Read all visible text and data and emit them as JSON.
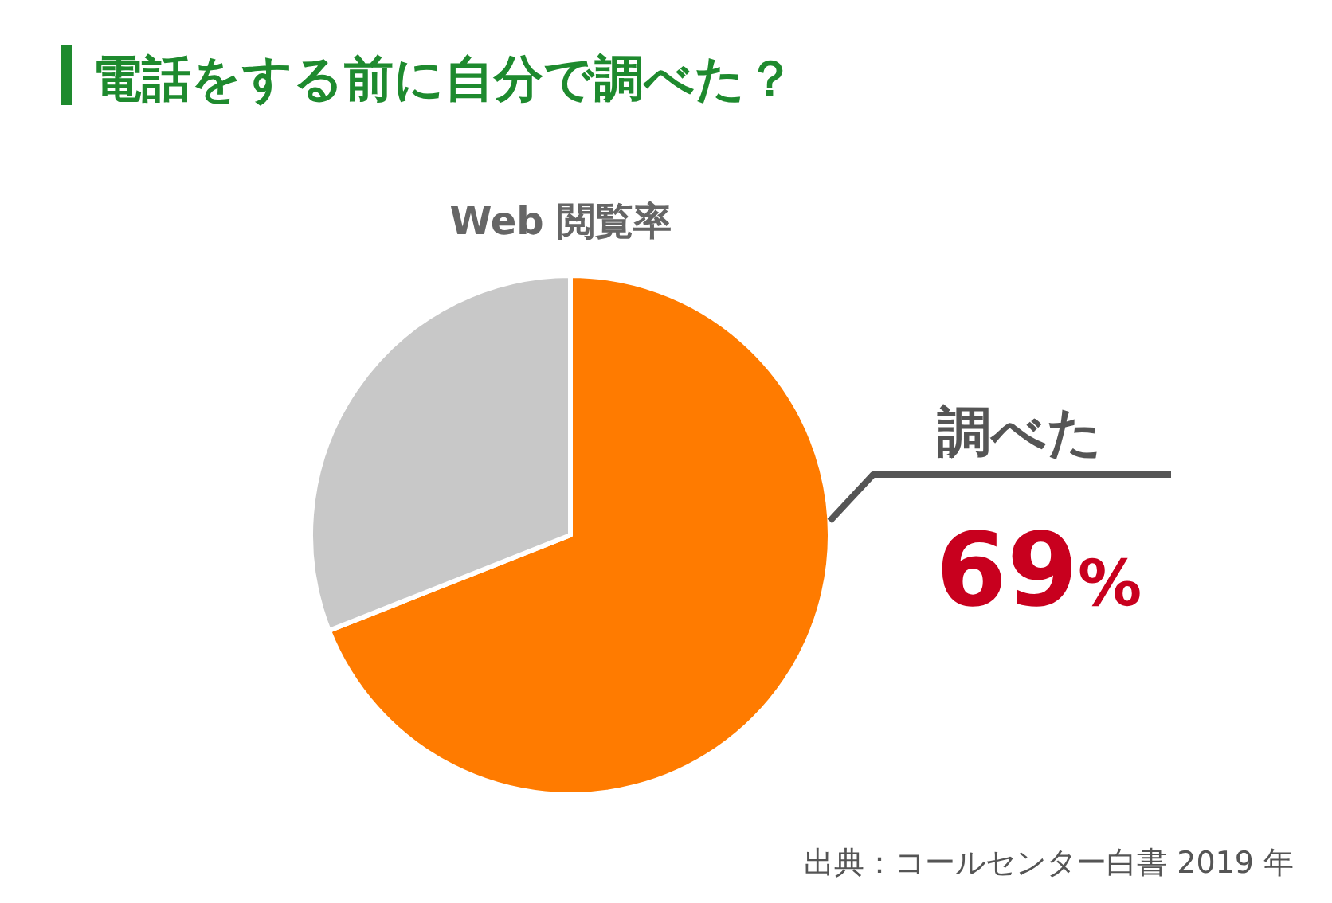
{
  "chart_data": {
    "type": "pie",
    "title": "電話をする前に自分で調べた？",
    "subtitle": "Web 閲覧率",
    "categories": [
      "調べた",
      null
    ],
    "values": [
      69,
      31
    ],
    "colors": [
      "#ff7b00",
      "#c8c8c8"
    ],
    "value_labels": [
      "69%",
      null
    ],
    "annotations": [
      "出典：コールセンター白書 2019 年"
    ]
  }
}
